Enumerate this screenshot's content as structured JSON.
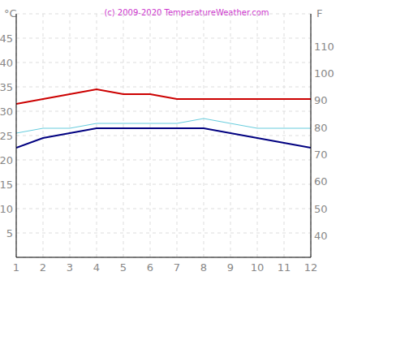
{
  "chart_data": {
    "type": "line",
    "title": "(c) 2009-2020 TemperatureWeather.com",
    "y_label": "°C",
    "y2_label": "F",
    "x": [
      1,
      2,
      3,
      4,
      5,
      6,
      7,
      8,
      9,
      10,
      11,
      12
    ],
    "xlim": [
      1,
      12
    ],
    "xticks": [
      1,
      2,
      3,
      4,
      5,
      6,
      7,
      8,
      9,
      10,
      11,
      12
    ],
    "ylim": [
      0,
      50
    ],
    "yticks": [
      5,
      10,
      15,
      20,
      25,
      30,
      35,
      40,
      45
    ],
    "y2lim": [
      32,
      122
    ],
    "y2ticks": [
      40,
      50,
      60,
      70,
      80,
      90,
      100,
      110
    ],
    "grid": true,
    "series": [
      {
        "color": "#cc0000",
        "values": [
          31.5,
          32.5,
          33.5,
          34.5,
          33.5,
          33.5,
          32.5,
          32.5,
          32.5,
          32.5,
          32.5,
          32.5
        ]
      },
      {
        "color": "#66ccdd",
        "values": [
          25.5,
          26.5,
          26.5,
          27.5,
          27.5,
          27.5,
          27.5,
          28.5,
          27.5,
          26.5,
          26.5,
          26.5
        ]
      },
      {
        "color": "#000080",
        "values": [
          22.5,
          24.5,
          25.5,
          26.5,
          26.5,
          26.5,
          26.5,
          26.5,
          25.5,
          24.5,
          23.5,
          22.5
        ]
      }
    ]
  }
}
